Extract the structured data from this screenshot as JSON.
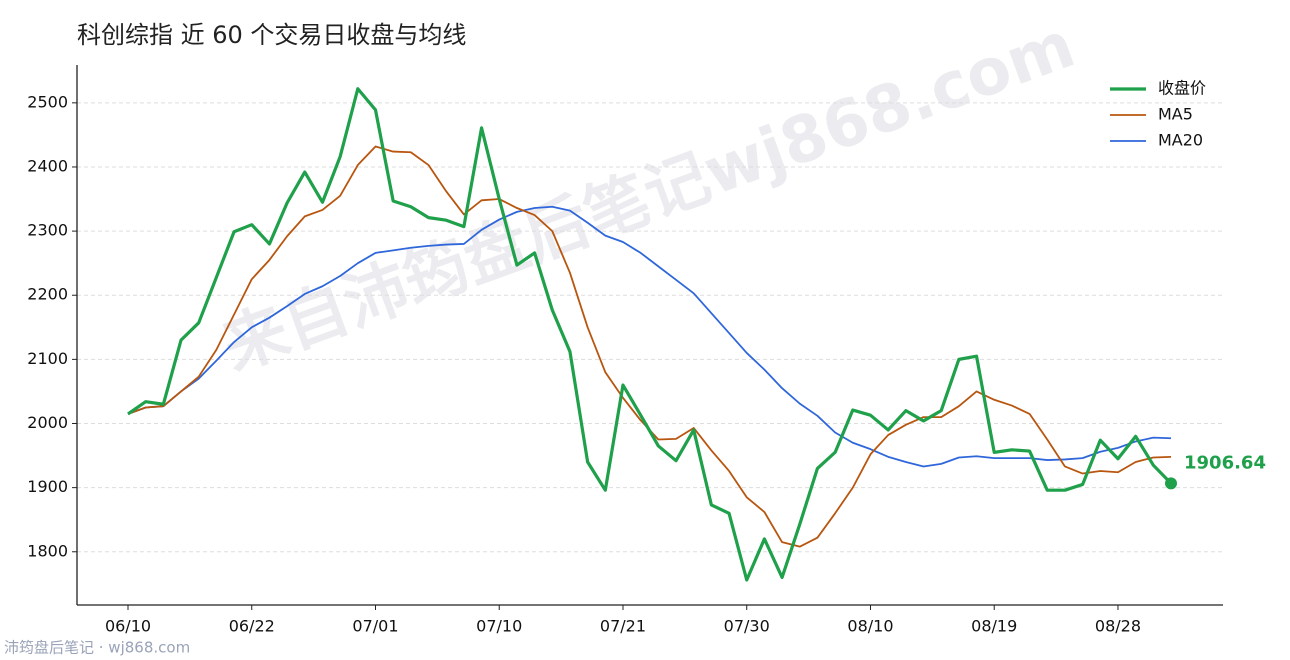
{
  "chart_data": {
    "type": "line",
    "title": "科创综指 近 60 个交易日收盘与均线",
    "categories": [
      "06/10",
      null,
      null,
      null,
      null,
      null,
      null,
      "06/22",
      null,
      null,
      null,
      null,
      null,
      null,
      "07/01",
      null,
      null,
      null,
      null,
      null,
      null,
      "07/10",
      null,
      null,
      null,
      null,
      null,
      null,
      "07/21",
      null,
      null,
      null,
      null,
      null,
      null,
      "07/30",
      null,
      null,
      null,
      null,
      null,
      null,
      "08/10",
      null,
      null,
      null,
      null,
      null,
      null,
      "08/19",
      null,
      null,
      null,
      null,
      null,
      null,
      "08/28",
      null,
      null,
      null
    ],
    "series": [
      {
        "name": "收盘价",
        "color": "#1fa04a",
        "width": 3.2,
        "values": [
          2015,
          2034,
          2030,
          2130,
          2157,
          2228,
          2299,
          2310,
          2280,
          2344,
          2392,
          2345,
          2416,
          2522,
          2489,
          2347,
          2338,
          2321,
          2317,
          2307,
          2461,
          2350,
          2247,
          2266,
          2177,
          2112,
          1940,
          1896,
          2060,
          2013,
          1965,
          1942,
          1990,
          1873,
          1860,
          1756,
          1820,
          1760,
          1843,
          1930,
          1955,
          2021,
          2013,
          1990,
          2020,
          2004,
          2020,
          2100,
          2105,
          1955,
          1959,
          1957,
          1896,
          1896,
          1905,
          1974,
          1945,
          1980,
          1935,
          1906.64
        ]
      },
      {
        "name": "MA5",
        "color": "#b8560f",
        "width": 1.8,
        "values": [
          2015,
          2025,
          2027,
          2050,
          2073,
          2115,
          2170,
          2225,
          2255,
          2292,
          2323,
          2333,
          2355,
          2403,
          2432,
          2424,
          2423,
          2403,
          2362,
          2326,
          2348,
          2350,
          2336,
          2325,
          2300,
          2235,
          2150,
          2080,
          2040,
          2005,
          1975,
          1976,
          1993,
          1958,
          1926,
          1885,
          1862,
          1815,
          1808,
          1822,
          1860,
          1900,
          1952,
          1982,
          1998,
          2010,
          2010,
          2027,
          2050,
          2037,
          2028,
          2015,
          1975,
          1933,
          1922,
          1926,
          1924,
          1940,
          1947,
          1948
        ]
      },
      {
        "name": "MA20",
        "color": "#2f67db",
        "width": 1.8,
        "values": [
          2015,
          2025,
          2027,
          2050,
          2070,
          2098,
          2127,
          2150,
          2165,
          2183,
          2202,
          2214,
          2230,
          2250,
          2266,
          2270,
          2274,
          2277,
          2279,
          2280,
          2302,
          2318,
          2330,
          2336,
          2338,
          2332,
          2313,
          2293,
          2283,
          2266,
          2245,
          2224,
          2203,
          2172,
          2141,
          2110,
          2084,
          2055,
          2031,
          2012,
          1986,
          1970,
          1960,
          1948,
          1940,
          1933,
          1937,
          1947,
          1949,
          1946,
          1946,
          1946,
          1943,
          1944,
          1946,
          1956,
          1962,
          1972,
          1978,
          1977
        ]
      }
    ],
    "ylim": [
      1717,
      2559
    ],
    "yticks": [
      1800,
      1900,
      2000,
      2100,
      2200,
      2300,
      2400,
      2500
    ],
    "grid": true,
    "legend": "upper right",
    "watermark": "来自沛筠盘后笔记wj868.com",
    "footer": "沛筠盘后笔记 · wj868.com"
  }
}
